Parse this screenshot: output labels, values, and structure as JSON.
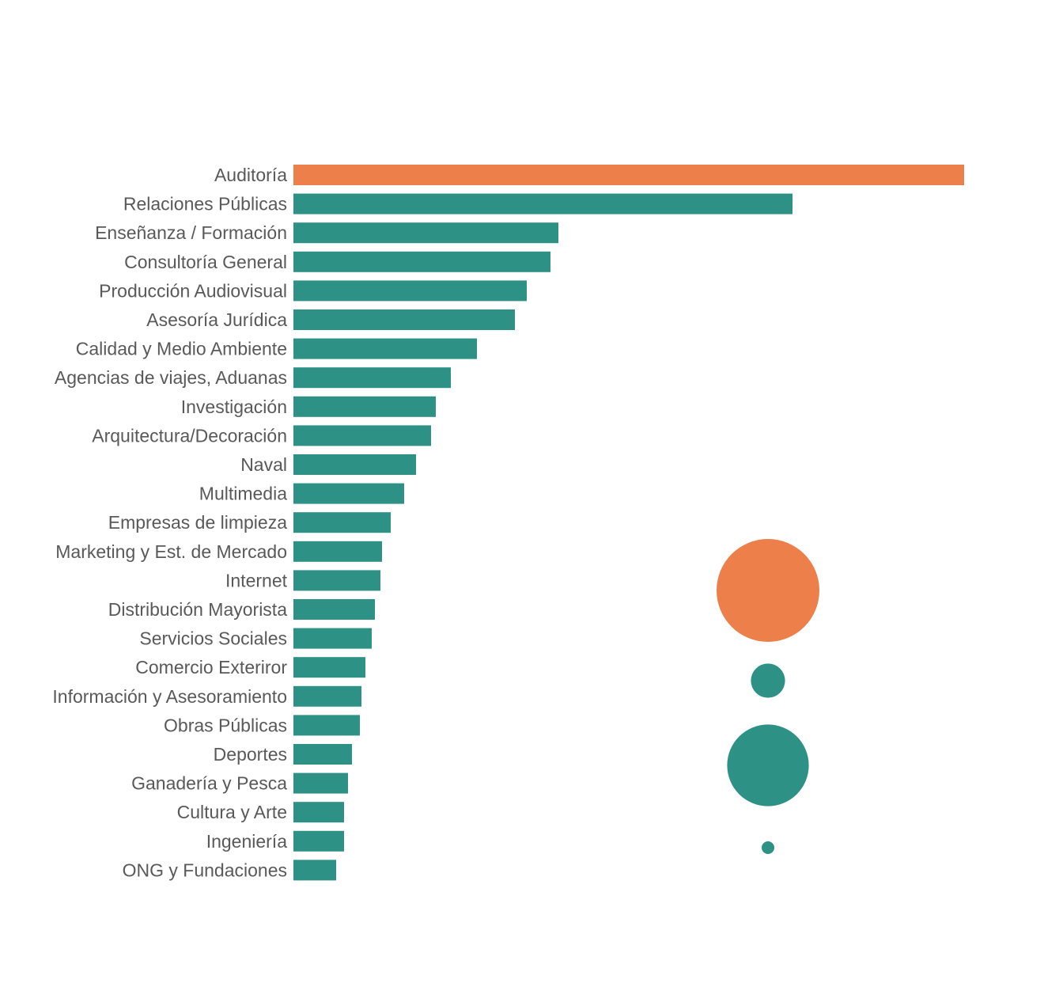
{
  "chart_data": {
    "type": "bar",
    "orientation": "horizontal",
    "categories": [
      "Auditoría",
      "Relaciones Públicas",
      "Enseñanza / Formación",
      "Consultoría General",
      "Producción Audiovisual",
      "Asesoría Jurídica",
      "Calidad y Medio Ambiente",
      "Agencias de viajes, Aduanas",
      "Investigación",
      "Arquitectura/Decoración",
      "Naval",
      "Multimedia",
      "Empresas de limpieza",
      "Marketing y Est. de Mercado",
      "Internet",
      "Distribución Mayorista",
      "Servicios Sociales",
      "Comercio Exteriror",
      "Información y Asesoramiento",
      "Obras Públicas",
      "Deportes",
      "Ganadería y Pesca",
      "Cultura y Arte",
      "Ingeniería",
      "ONG y Fundaciones"
    ],
    "values": [
      848,
      631,
      335,
      325,
      295,
      280,
      232,
      199,
      180,
      174,
      155,
      140,
      123,
      112,
      110,
      103,
      99,
      91,
      86,
      84,
      74,
      69,
      64,
      64,
      54
    ],
    "highlight_index": 0,
    "xlim": [
      0,
      848
    ],
    "title": "",
    "xlabel": "",
    "ylabel": "",
    "grid": false,
    "legend": "none",
    "colors": {
      "highlight": "#EC7F4A",
      "default": "#2E9185",
      "label": "#595959"
    },
    "bubbles": [
      {
        "size": 100,
        "color": "#EC7F4A"
      },
      {
        "size": 11,
        "color": "#2E9185"
      },
      {
        "size": 63,
        "color": "#2E9185"
      },
      {
        "size": 1.5,
        "color": "#2E9185"
      }
    ]
  }
}
